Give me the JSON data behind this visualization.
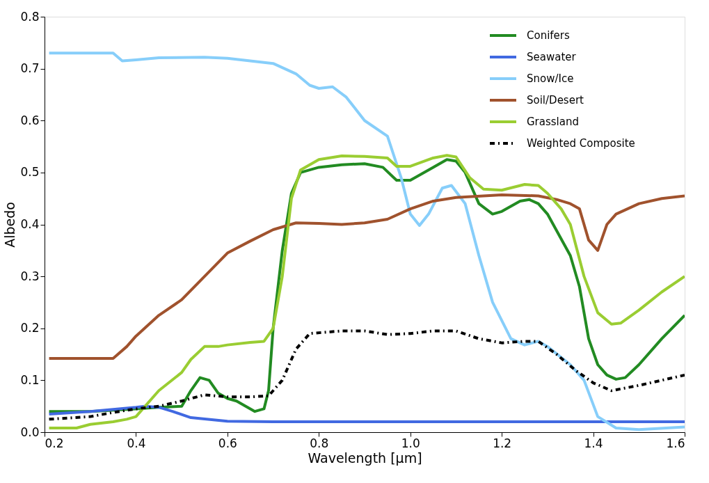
{
  "chart_data": {
    "type": "line",
    "xlabel": "Wavelength [μm]",
    "ylabel": "Albedo",
    "xlim": [
      0.2,
      1.6
    ],
    "xticks": [
      0.2,
      0.4,
      0.6,
      0.8,
      {
        "value": 1.0,
        "label": "1.0"
      },
      1.2,
      1.4,
      1.6
    ],
    "ylim": [
      0.0,
      0.8
    ],
    "yticks": [
      {
        "value": 0.0,
        "label": "0.0"
      },
      0.1,
      0.2,
      0.3,
      0.4,
      0.5,
      0.6,
      0.7,
      0.8
    ],
    "grid": false,
    "legend": "top right",
    "line_style": "solid",
    "marker": "none",
    "series": [
      {
        "name": "Conifers",
        "color": "#228b22",
        "x": [
          0.21,
          0.3,
          0.4,
          0.45,
          0.5,
          0.52,
          0.54,
          0.56,
          0.58,
          0.6,
          0.62,
          0.64,
          0.66,
          0.68,
          0.69,
          0.7,
          0.72,
          0.74,
          0.76,
          0.8,
          0.85,
          0.9,
          0.94,
          0.97,
          1.0,
          1.05,
          1.08,
          1.1,
          1.12,
          1.15,
          1.18,
          1.2,
          1.24,
          1.26,
          1.28,
          1.3,
          1.35,
          1.37,
          1.39,
          1.41,
          1.43,
          1.45,
          1.47,
          1.5,
          1.55,
          1.6
        ],
        "values": [
          0.04,
          0.04,
          0.045,
          0.048,
          0.05,
          0.08,
          0.105,
          0.1,
          0.075,
          0.065,
          0.06,
          0.05,
          0.04,
          0.045,
          0.08,
          0.2,
          0.35,
          0.46,
          0.5,
          0.51,
          0.515,
          0.517,
          0.51,
          0.485,
          0.485,
          0.51,
          0.525,
          0.522,
          0.5,
          0.44,
          0.42,
          0.425,
          0.445,
          0.448,
          0.44,
          0.42,
          0.34,
          0.28,
          0.18,
          0.13,
          0.11,
          0.102,
          0.105,
          0.13,
          0.18,
          0.225
        ]
      },
      {
        "name": "Seawater",
        "color": "#4169e1",
        "x": [
          0.21,
          0.3,
          0.4,
          0.42,
          0.45,
          0.48,
          0.52,
          0.6,
          0.7,
          0.8,
          1.0,
          1.2,
          1.4,
          1.6
        ],
        "values": [
          0.035,
          0.04,
          0.048,
          0.05,
          0.048,
          0.04,
          0.028,
          0.021,
          0.02,
          0.02,
          0.02,
          0.02,
          0.02,
          0.02
        ]
      },
      {
        "name": "Snow/Ice",
        "color": "#87cefa",
        "x": [
          0.21,
          0.35,
          0.37,
          0.4,
          0.45,
          0.55,
          0.6,
          0.7,
          0.75,
          0.78,
          0.8,
          0.83,
          0.86,
          0.9,
          0.95,
          0.98,
          1.0,
          1.02,
          1.04,
          1.07,
          1.09,
          1.12,
          1.15,
          1.18,
          1.22,
          1.25,
          1.28,
          1.3,
          1.35,
          1.38,
          1.41,
          1.45,
          1.5,
          1.6
        ],
        "values": [
          0.73,
          0.73,
          0.715,
          0.717,
          0.721,
          0.722,
          0.72,
          0.71,
          0.69,
          0.668,
          0.662,
          0.665,
          0.645,
          0.6,
          0.57,
          0.49,
          0.42,
          0.398,
          0.42,
          0.47,
          0.475,
          0.44,
          0.34,
          0.25,
          0.18,
          0.168,
          0.175,
          0.165,
          0.13,
          0.1,
          0.03,
          0.008,
          0.005,
          0.01
        ]
      },
      {
        "name": "Soil/Desert",
        "color": "#a0522d",
        "x": [
          0.21,
          0.35,
          0.38,
          0.4,
          0.45,
          0.5,
          0.55,
          0.6,
          0.65,
          0.7,
          0.75,
          0.8,
          0.85,
          0.9,
          0.95,
          1.0,
          1.05,
          1.1,
          1.2,
          1.28,
          1.32,
          1.35,
          1.37,
          1.39,
          1.41,
          1.43,
          1.45,
          1.5,
          1.55,
          1.6
        ],
        "values": [
          0.142,
          0.142,
          0.165,
          0.185,
          0.225,
          0.255,
          0.3,
          0.345,
          0.368,
          0.39,
          0.403,
          0.402,
          0.4,
          0.403,
          0.41,
          0.43,
          0.445,
          0.452,
          0.457,
          0.455,
          0.448,
          0.44,
          0.43,
          0.37,
          0.35,
          0.4,
          0.42,
          0.44,
          0.45,
          0.455
        ]
      },
      {
        "name": "Grassland",
        "color": "#9acd32",
        "x": [
          0.21,
          0.27,
          0.3,
          0.35,
          0.38,
          0.4,
          0.45,
          0.5,
          0.52,
          0.55,
          0.58,
          0.6,
          0.65,
          0.68,
          0.7,
          0.72,
          0.74,
          0.76,
          0.8,
          0.85,
          0.9,
          0.95,
          0.97,
          1.0,
          1.05,
          1.08,
          1.1,
          1.13,
          1.16,
          1.2,
          1.25,
          1.28,
          1.3,
          1.33,
          1.35,
          1.38,
          1.41,
          1.44,
          1.46,
          1.5,
          1.55,
          1.6
        ],
        "values": [
          0.008,
          0.008,
          0.015,
          0.02,
          0.025,
          0.03,
          0.08,
          0.115,
          0.14,
          0.165,
          0.165,
          0.168,
          0.173,
          0.175,
          0.2,
          0.3,
          0.45,
          0.505,
          0.525,
          0.532,
          0.531,
          0.528,
          0.512,
          0.512,
          0.528,
          0.533,
          0.53,
          0.49,
          0.468,
          0.466,
          0.477,
          0.475,
          0.46,
          0.43,
          0.4,
          0.3,
          0.23,
          0.208,
          0.21,
          0.235,
          0.27,
          0.3
        ]
      },
      {
        "name": "Weighted Composite",
        "color": "#000000",
        "line_style": "dashed",
        "x": [
          0.21,
          0.3,
          0.35,
          0.4,
          0.45,
          0.5,
          0.55,
          0.6,
          0.65,
          0.69,
          0.72,
          0.75,
          0.78,
          0.85,
          0.9,
          0.95,
          1.0,
          1.05,
          1.1,
          1.15,
          1.2,
          1.25,
          1.28,
          1.32,
          1.36,
          1.4,
          1.44,
          1.5,
          1.55,
          1.6
        ],
        "values": [
          0.025,
          0.03,
          0.038,
          0.045,
          0.05,
          0.06,
          0.072,
          0.068,
          0.068,
          0.07,
          0.1,
          0.16,
          0.19,
          0.195,
          0.195,
          0.188,
          0.19,
          0.195,
          0.195,
          0.18,
          0.172,
          0.175,
          0.175,
          0.15,
          0.12,
          0.095,
          0.08,
          0.09,
          0.1,
          0.11
        ]
      }
    ]
  }
}
